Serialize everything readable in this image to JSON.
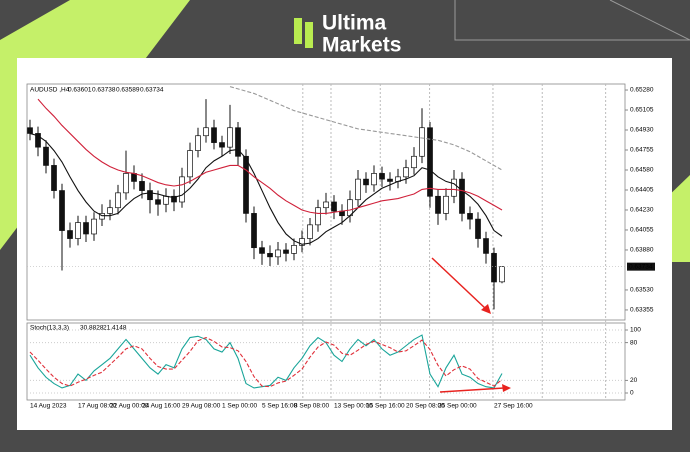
{
  "header": {
    "brand_line1": "Ultima",
    "brand_line2": "Markets"
  },
  "chart_data": [
    {
      "type": "candlestick",
      "symbol": "AUDUSD ,H4",
      "categories": [
        "14 Aug 2023",
        null,
        null,
        null,
        null,
        null,
        "17 Aug 08:00",
        null,
        null,
        null,
        "22 Aug 00:00",
        null,
        null,
        null,
        "24 Aug 16:00",
        null,
        null,
        null,
        null,
        "29 Aug 08:00",
        null,
        null,
        null,
        null,
        "1 Sep 00:00",
        null,
        null,
        null,
        null,
        "5 Sep 16:00",
        null,
        null,
        null,
        "8 Sep 08:00",
        null,
        null,
        null,
        null,
        "13 Sep 00:00",
        null,
        null,
        null,
        "15 Sep 16:00",
        null,
        null,
        null,
        null,
        "20 Sep 08:00",
        null,
        null,
        null,
        "25 Sep 00:00",
        null,
        null,
        null,
        null,
        null,
        null,
        "27 Sep 16:00",
        null
      ],
      "open": [
        0.6495,
        0.649,
        0.6478,
        0.6462,
        0.644,
        0.6405,
        0.6398,
        0.6412,
        0.6402,
        0.6415,
        0.642,
        0.6425,
        0.6438,
        0.6455,
        0.6448,
        0.644,
        0.6432,
        0.6428,
        0.6435,
        0.643,
        0.6452,
        0.6475,
        0.6488,
        0.6495,
        0.6482,
        0.6478,
        0.6495,
        0.647,
        0.642,
        0.639,
        0.6385,
        0.6382,
        0.6388,
        0.6385,
        0.6392,
        0.6398,
        0.641,
        0.6425,
        0.643,
        0.6422,
        0.6418,
        0.6432,
        0.645,
        0.6445,
        0.6455,
        0.645,
        0.6448,
        0.6452,
        0.646,
        0.647,
        0.6495,
        0.6435,
        0.642,
        0.6435,
        0.645,
        0.642,
        0.6415,
        0.6398,
        0.6385,
        0.63601
      ],
      "high": [
        0.6502,
        0.6496,
        0.6484,
        0.6468,
        0.6446,
        0.6412,
        0.6418,
        0.6418,
        0.6421,
        0.6428,
        0.6432,
        0.6445,
        0.6475,
        0.6462,
        0.6455,
        0.6447,
        0.644,
        0.6442,
        0.6441,
        0.646,
        0.6482,
        0.6495,
        0.652,
        0.6502,
        0.6488,
        0.6515,
        0.65,
        0.6476,
        0.6426,
        0.6396,
        0.6392,
        0.6395,
        0.6394,
        0.6398,
        0.6405,
        0.6416,
        0.6432,
        0.6438,
        0.6436,
        0.6428,
        0.644,
        0.6458,
        0.6456,
        0.6462,
        0.6461,
        0.6456,
        0.6459,
        0.6467,
        0.6478,
        0.6512,
        0.65,
        0.6441,
        0.6442,
        0.6458,
        0.6456,
        0.6426,
        0.6421,
        0.6404,
        0.639,
        0.63738
      ],
      "low": [
        0.6484,
        0.647,
        0.6455,
        0.6433,
        0.637,
        0.639,
        0.6392,
        0.6395,
        0.6396,
        0.6409,
        0.6414,
        0.6419,
        0.6432,
        0.6441,
        0.6433,
        0.642,
        0.6418,
        0.6421,
        0.6422,
        0.6425,
        0.6446,
        0.6469,
        0.6482,
        0.6476,
        0.647,
        0.6472,
        0.6462,
        0.6412,
        0.638,
        0.6375,
        0.6374,
        0.6375,
        0.6378,
        0.6379,
        0.6386,
        0.6392,
        0.6404,
        0.6419,
        0.6415,
        0.641,
        0.6412,
        0.6426,
        0.6438,
        0.6439,
        0.6443,
        0.644,
        0.6442,
        0.6446,
        0.6454,
        0.6464,
        0.6425,
        0.641,
        0.6414,
        0.6429,
        0.6413,
        0.6406,
        0.639,
        0.6376,
        0.6336,
        0.63589
      ],
      "close": [
        0.649,
        0.6478,
        0.6462,
        0.644,
        0.6405,
        0.6398,
        0.6412,
        0.6402,
        0.6415,
        0.642,
        0.6425,
        0.6438,
        0.6455,
        0.6448,
        0.644,
        0.6432,
        0.6428,
        0.6435,
        0.643,
        0.6452,
        0.6475,
        0.6488,
        0.6495,
        0.6482,
        0.6478,
        0.6495,
        0.647,
        0.642,
        0.639,
        0.6385,
        0.6382,
        0.6388,
        0.6385,
        0.6392,
        0.6398,
        0.641,
        0.6425,
        0.643,
        0.6422,
        0.6418,
        0.6432,
        0.645,
        0.6445,
        0.6455,
        0.645,
        0.6448,
        0.6452,
        0.646,
        0.647,
        0.6495,
        0.6435,
        0.642,
        0.6435,
        0.645,
        0.642,
        0.6415,
        0.6398,
        0.6385,
        0.636,
        0.63734
      ],
      "overlays": [
        {
          "color": "#111111",
          "style": "solid",
          "values": [
            0.649,
            0.6488,
            0.6483,
            0.6475,
            0.6465,
            0.6452,
            0.644,
            0.643,
            0.6422,
            0.6418,
            0.6418,
            0.642,
            0.6427,
            0.6433,
            0.6437,
            0.6438,
            0.6437,
            0.6435,
            0.6434,
            0.6436,
            0.6442,
            0.645,
            0.646,
            0.6466,
            0.647,
            0.6475,
            0.6476,
            0.6468,
            0.6455,
            0.644,
            0.6425,
            0.6412,
            0.6402,
            0.6396,
            0.6393,
            0.6394,
            0.6398,
            0.6404,
            0.6408,
            0.6412,
            0.6418,
            0.6425,
            0.6432,
            0.6437,
            0.6442,
            0.6445,
            0.6448,
            0.645,
            0.6453,
            0.646,
            0.6458,
            0.6452,
            0.6448,
            0.6446,
            0.644,
            0.6435,
            0.6428,
            0.6418,
            0.6405,
            0.64
          ]
        },
        {
          "color": "#d0213a",
          "style": "solid",
          "values": [
            null,
            0.652,
            0.6512,
            0.6505,
            0.6497,
            0.649,
            0.6483,
            0.6476,
            0.647,
            0.6465,
            0.6461,
            0.6458,
            0.6456,
            0.6455,
            0.6453,
            0.645,
            0.6447,
            0.6445,
            0.6444,
            0.6445,
            0.6448,
            0.6452,
            0.6456,
            0.6458,
            0.646,
            0.6462,
            0.6462,
            0.6458,
            0.6452,
            0.6447,
            0.6442,
            0.6436,
            0.6431,
            0.6427,
            0.6423,
            0.6421,
            0.642,
            0.642,
            0.6421,
            0.6422,
            0.6423,
            0.6425,
            0.6427,
            0.6429,
            0.6431,
            0.6432,
            0.6433,
            0.6435,
            0.6437,
            0.6441,
            0.6442,
            0.6441,
            0.6441,
            0.6441,
            0.644,
            0.6438,
            0.6435,
            0.6431,
            0.6427,
            0.6423
          ]
        },
        {
          "color": "#999999",
          "style": "dashed",
          "values": [
            null,
            null,
            null,
            null,
            null,
            null,
            null,
            null,
            null,
            null,
            null,
            null,
            null,
            null,
            null,
            null,
            null,
            null,
            null,
            null,
            null,
            null,
            null,
            null,
            null,
            0.6531,
            0.6529,
            0.6527,
            0.6525,
            0.6522,
            0.6519,
            0.6516,
            0.6513,
            0.651,
            0.6508,
            0.6506,
            0.6504,
            0.6502,
            0.65,
            0.6498,
            0.6496,
            0.6494,
            0.6493,
            0.6492,
            0.6491,
            0.649,
            0.6489,
            0.6488,
            0.6487,
            0.6486,
            0.6485,
            0.6484,
            0.6482,
            0.648,
            0.6477,
            0.6474,
            0.647,
            0.6466,
            0.6462,
            0.6458
          ]
        }
      ],
      "ylim": [
        0.63267,
        0.65324
      ],
      "yticks": [
        {
          "value": 0.6528,
          "label": "0.65280"
        },
        0.65105,
        {
          "value": 0.6493,
          "label": "0.64930"
        },
        0.64755,
        {
          "value": 0.6458,
          "label": "0.64580"
        },
        0.64405,
        {
          "value": 0.6423,
          "label": "0.64230"
        },
        0.64055,
        {
          "value": 0.6388,
          "label": "0.63880"
        },
        {
          "value": 0.6353,
          "label": "0.63530"
        },
        0.63355
      ]
    },
    {
      "type": "line",
      "title": "Stoch(13,3,3)",
      "series": [
        {
          "color": "#1aa59a",
          "style": "solid",
          "values": [
            60,
            40,
            25,
            15,
            8,
            12,
            30,
            20,
            35,
            45,
            55,
            70,
            85,
            70,
            55,
            40,
            30,
            45,
            40,
            70,
            88,
            90,
            85,
            70,
            65,
            80,
            55,
            15,
            8,
            10,
            12,
            25,
            20,
            40,
            55,
            75,
            88,
            80,
            60,
            50,
            70,
            85,
            75,
            85,
            70,
            60,
            65,
            75,
            85,
            92,
            30,
            10,
            40,
            60,
            30,
            25,
            15,
            10,
            8,
            30.8828
          ]
        },
        {
          "color": "#e0303a",
          "style": "dashed",
          "values": [
            65,
            52,
            38,
            25,
            15,
            11,
            17,
            22,
            28,
            33,
            45,
            57,
            70,
            75,
            70,
            55,
            42,
            38,
            38,
            52,
            66,
            83,
            88,
            82,
            73,
            72,
            67,
            50,
            26,
            11,
            10,
            16,
            19,
            28,
            38,
            57,
            73,
            81,
            76,
            63,
            60,
            68,
            77,
            82,
            77,
            72,
            65,
            67,
            75,
            84,
            69,
            44,
            27,
            37,
            43,
            38,
            23,
            17,
            11,
            21.4148
          ]
        }
      ],
      "ylim": [
        0,
        100
      ],
      "yticks": [
        100,
        80,
        20,
        0
      ]
    }
  ]
}
